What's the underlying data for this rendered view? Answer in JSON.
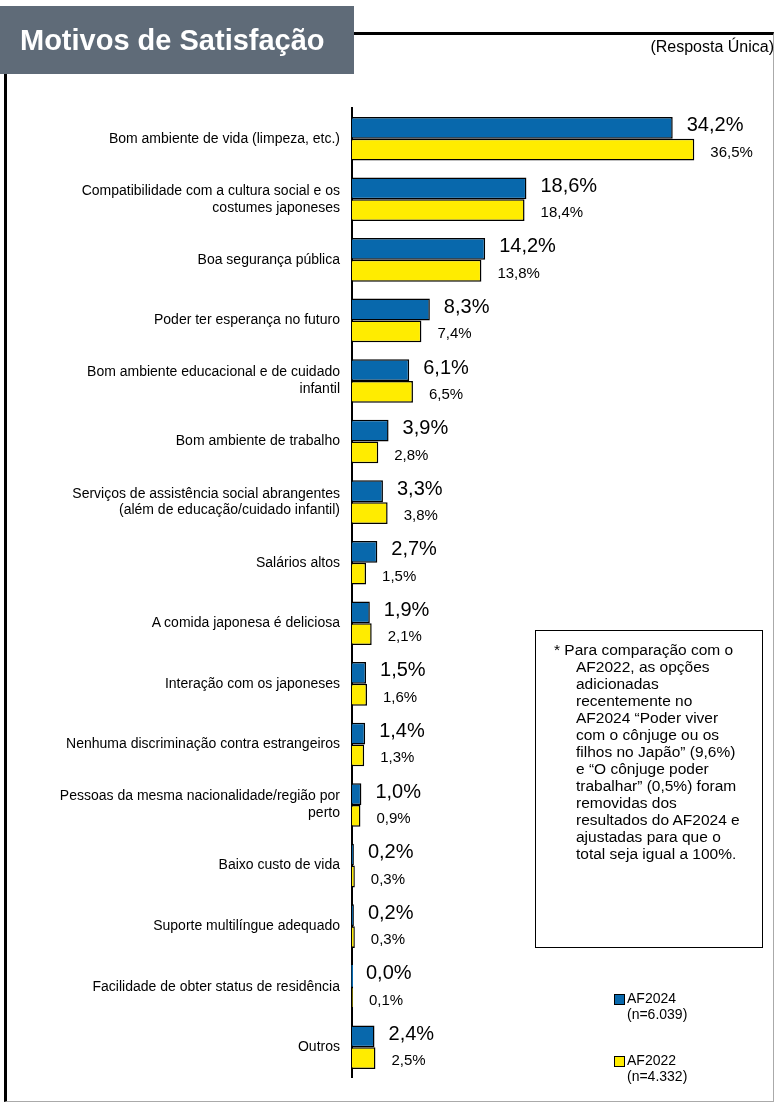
{
  "chart_data": {
    "type": "bar",
    "orientation": "horizontal",
    "title": "Motivos de Satisfação",
    "annotations": [
      "(Resposta Única)",
      "*  Para comparação com o AF2022, as opções adicionadas recentemente no AF2024 “Poder viver com o cônjuge ou os filhos no Japão” (9,6%) e “O cônjuge poder trabalhar” (0,5%) foram removidas dos resultados do AF2024 e ajustadas para que o total seja igual a 100%."
    ],
    "categories": [
      "Bom ambiente de vida (limpeza, etc.)",
      "Compatibilidade com a cultura social e os costumes japoneses",
      "Boa segurança pública",
      "Poder ter esperança no futuro",
      "Bom ambiente educacional e de cuidado infantil",
      "Bom ambiente de trabalho",
      "Serviços de assistência social abrangentes (além de educação/cuidado infantil)",
      "Salários altos",
      "A comida japonesa é deliciosa",
      "Interação com os japoneses",
      "Nenhuma discriminação contra estrangeiros",
      "Pessoas da mesma nacionalidade/região por perto",
      "Baixo custo de vida",
      "Suporte multilíngue adequado",
      "Facilidade de obter status de residência",
      "Outros"
    ],
    "series": [
      {
        "name": "AF2024 (n=6.039)",
        "color": "#0868ac",
        "values": [
          34.2,
          18.6,
          14.2,
          8.3,
          6.1,
          3.9,
          3.3,
          2.7,
          1.9,
          1.5,
          1.4,
          1.0,
          0.2,
          0.2,
          0.0,
          2.4
        ],
        "value_labels": [
          "34,2%",
          "18,6%",
          "14,2%",
          "8,3%",
          "6,1%",
          "3,9%",
          "3,3%",
          "2,7%",
          "1,9%",
          "1,5%",
          "1,4%",
          "1,0%",
          "0,2%",
          "0,2%",
          "0,0%",
          "2,4%"
        ]
      },
      {
        "name": "AF2022 (n=4.332)",
        "color": "#ffec00",
        "values": [
          36.5,
          18.4,
          13.8,
          7.4,
          6.5,
          2.8,
          3.8,
          1.5,
          2.1,
          1.6,
          1.3,
          0.9,
          0.3,
          0.3,
          0.1,
          2.5
        ],
        "value_labels": [
          "36,5%",
          "18,4%",
          "13,8%",
          "7,4%",
          "6,5%",
          "2,8%",
          "3,8%",
          "1,5%",
          "2,1%",
          "1,6%",
          "1,3%",
          "0,9%",
          "0,3%",
          "0,3%",
          "0,1%",
          "2,5%"
        ]
      }
    ],
    "xlim": [
      0,
      45
    ],
    "grid": false,
    "legend": "bottom right",
    "tick_labels": "y"
  }
}
